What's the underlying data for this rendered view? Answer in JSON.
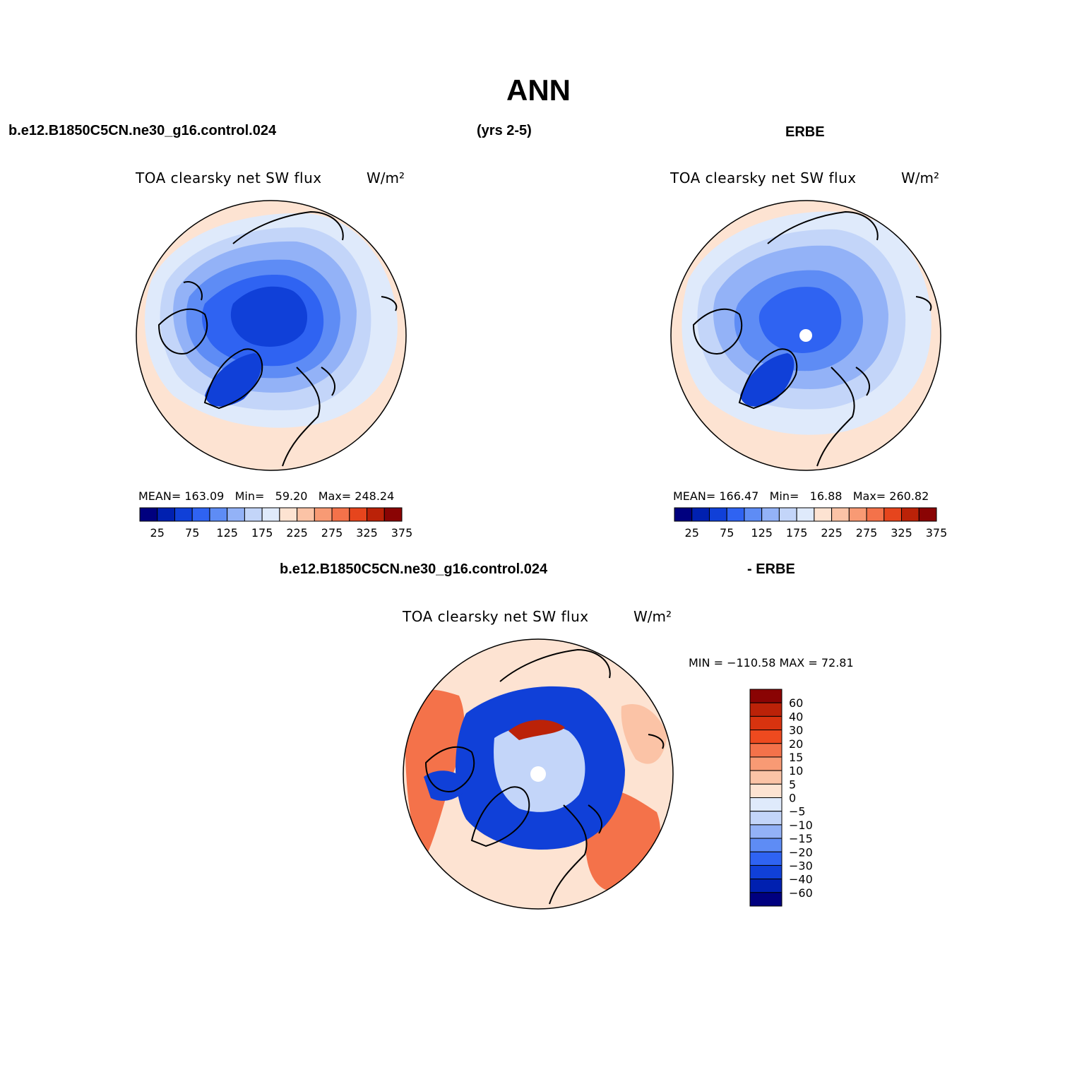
{
  "title": "ANN",
  "top_left_label": "b.e12.B1850C5CN.ne30_g16.control.024",
  "top_center_label": "(yrs 2-5)",
  "top_right_label": "ERBE",
  "mid_left_label": "b.e12.B1850C5CN.ne30_g16.control.024",
  "mid_right_label": "- ERBE",
  "panels": [
    {
      "id": "model",
      "title": "TOA clearsky net SW flux",
      "units": "W/m²",
      "mean_label": "MEAN=",
      "mean": "163.09",
      "min_label": "Min=",
      "min": "59.20",
      "max_label": "Max=",
      "max": "248.24",
      "ticks": [
        "25",
        "75",
        "125",
        "175",
        "225",
        "275",
        "325",
        "375"
      ]
    },
    {
      "id": "obs",
      "title": "TOA clearsky net SW flux",
      "units": "W/m²",
      "mean_label": "MEAN=",
      "mean": "166.47",
      "min_label": "Min=",
      "min": "16.88",
      "max_label": "Max=",
      "max": "260.82",
      "ticks": [
        "25",
        "75",
        "125",
        "175",
        "225",
        "275",
        "325",
        "375"
      ]
    },
    {
      "id": "diff",
      "title": "TOA clearsky net SW flux",
      "units": "W/m²",
      "minmax_label": "MIN = −110.58  MAX =   72.81",
      "ticks": [
        "60",
        "40",
        "30",
        "20",
        "15",
        "10",
        "5",
        "0",
        "−5",
        "−10",
        "−15",
        "−20",
        "−30",
        "−40",
        "−60"
      ]
    }
  ],
  "colors": {
    "abs_scale": [
      "#00007f",
      "#0020b0",
      "#1040d8",
      "#2f63f2",
      "#5e8cf5",
      "#93b2f7",
      "#c3d5f9",
      "#dfeafb",
      "#fde3d2",
      "#fbc3a6",
      "#f89a74",
      "#f4724a",
      "#e6451d",
      "#bb2208",
      "#8a0404"
    ],
    "diff_scale": [
      "#8a0404",
      "#bb2208",
      "#d8330f",
      "#ee4a1f",
      "#f4724a",
      "#f89a74",
      "#fbc3a6",
      "#fde3d2",
      "#dfeafb",
      "#c3d5f9",
      "#93b2f7",
      "#5e8cf5",
      "#2f63f2",
      "#1040d8",
      "#0020b0",
      "#00007f"
    ]
  }
}
